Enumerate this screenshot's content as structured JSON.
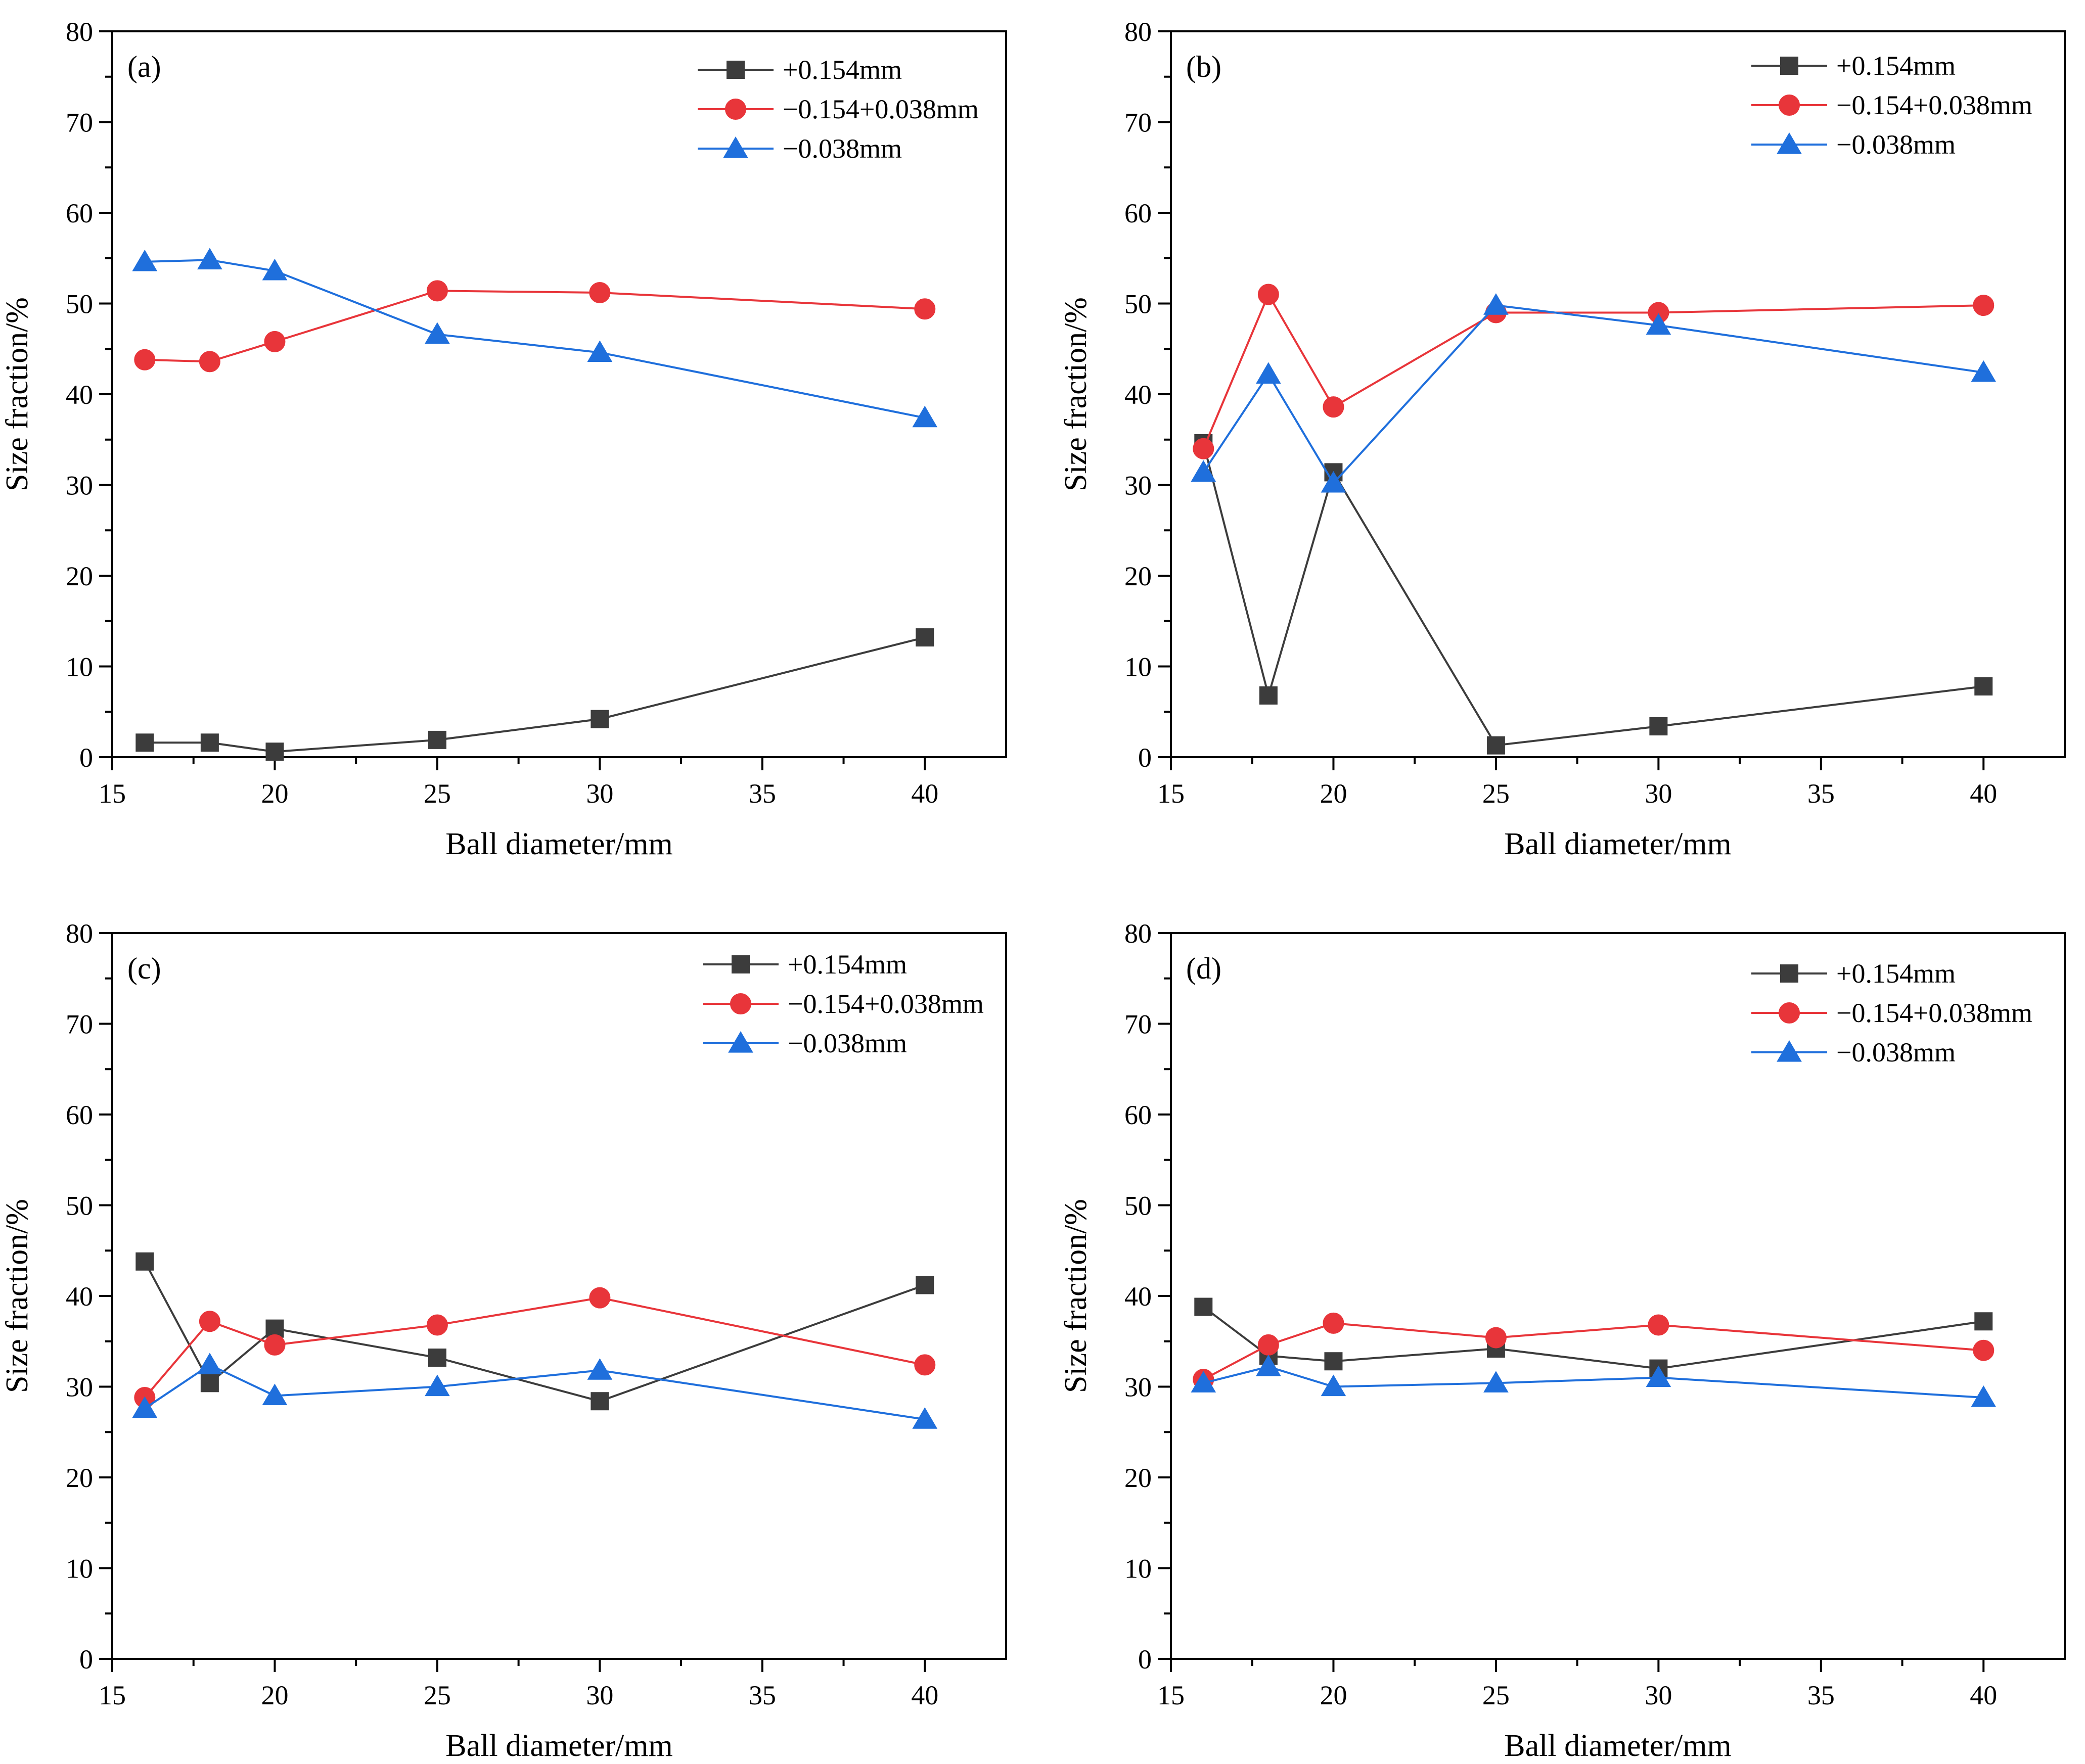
{
  "series_styles": [
    {
      "name": "+0.154mm",
      "color": "#3c3c3c",
      "marker": "square"
    },
    {
      "name": "−0.154+0.038mm",
      "color": "#e8353a",
      "marker": "circle"
    },
    {
      "name": "−0.038mm",
      "color": "#1f6fdc",
      "marker": "triangle"
    }
  ],
  "chart_data": [
    {
      "type": "line",
      "panel": "(a)",
      "xlabel": "Ball diameter/mm",
      "ylabel": "Size fraction/%",
      "xlim": [
        15,
        42.5
      ],
      "ylim": [
        0,
        80
      ],
      "xticks": [
        15,
        20,
        25,
        30,
        35,
        40
      ],
      "yticks": [
        0,
        10,
        20,
        30,
        40,
        50,
        60,
        70,
        80
      ],
      "x": [
        16,
        18,
        20,
        25,
        30,
        40
      ],
      "legend_position": "top-right",
      "series": [
        {
          "name": "+0.154mm",
          "values": [
            1.6,
            1.6,
            0.6,
            1.9,
            4.2,
            13.2
          ]
        },
        {
          "name": "−0.154+0.038mm",
          "values": [
            43.8,
            43.6,
            45.8,
            51.4,
            51.2,
            49.4
          ]
        },
        {
          "name": "−0.038mm",
          "values": [
            54.6,
            54.8,
            53.6,
            46.6,
            44.6,
            37.4
          ]
        }
      ]
    },
    {
      "type": "line",
      "panel": "(b)",
      "xlabel": "Ball diameter/mm",
      "ylabel": "Size fraction/%",
      "xlim": [
        15,
        42.5
      ],
      "ylim": [
        0,
        80
      ],
      "xticks": [
        15,
        20,
        25,
        30,
        35,
        40
      ],
      "yticks": [
        0,
        10,
        20,
        30,
        40,
        50,
        60,
        70,
        80
      ],
      "x": [
        16,
        18,
        20,
        25,
        30,
        40
      ],
      "legend_position": "top-right",
      "series": [
        {
          "name": "+0.154mm",
          "values": [
            34.6,
            6.8,
            31.4,
            1.3,
            3.4,
            7.8
          ]
        },
        {
          "name": "−0.154+0.038mm",
          "values": [
            34.0,
            51.0,
            38.6,
            49.0,
            49.0,
            49.8
          ]
        },
        {
          "name": "−0.038mm",
          "values": [
            31.4,
            42.2,
            30.2,
            49.8,
            47.6,
            42.4
          ]
        }
      ]
    },
    {
      "type": "line",
      "panel": "(c)",
      "xlabel": "Ball diameter/mm",
      "ylabel": "Size fraction/%",
      "xlim": [
        15,
        42.5
      ],
      "ylim": [
        0,
        80
      ],
      "xticks": [
        15,
        20,
        25,
        30,
        35,
        40
      ],
      "yticks": [
        0,
        10,
        20,
        30,
        40,
        50,
        60,
        70,
        80
      ],
      "x": [
        16,
        18,
        20,
        25,
        30,
        40
      ],
      "legend_position": "top-right",
      "series": [
        {
          "name": "+0.154mm",
          "values": [
            43.8,
            30.4,
            36.4,
            33.2,
            28.4,
            41.2
          ]
        },
        {
          "name": "−0.154+0.038mm",
          "values": [
            28.8,
            37.2,
            34.6,
            36.8,
            39.8,
            32.4
          ]
        },
        {
          "name": "−0.038mm",
          "values": [
            27.6,
            32.4,
            29.0,
            30.0,
            31.8,
            26.4
          ]
        }
      ]
    },
    {
      "type": "line",
      "panel": "(d)",
      "xlabel": "Ball diameter/mm",
      "ylabel": "Size fraction/%",
      "xlim": [
        15,
        42.5
      ],
      "ylim": [
        0,
        80
      ],
      "xticks": [
        15,
        20,
        25,
        30,
        35,
        40
      ],
      "yticks": [
        0,
        10,
        20,
        30,
        40,
        50,
        60,
        70,
        80
      ],
      "x": [
        16,
        18,
        20,
        25,
        30,
        40
      ],
      "legend_position": "top-right",
      "series": [
        {
          "name": "+0.154mm",
          "values": [
            38.8,
            33.4,
            32.8,
            34.2,
            32.0,
            37.2
          ]
        },
        {
          "name": "−0.154+0.038mm",
          "values": [
            30.8,
            34.6,
            37.0,
            35.4,
            36.8,
            34.0
          ]
        },
        {
          "name": "−0.038mm",
          "values": [
            30.4,
            32.2,
            30.0,
            30.4,
            31.0,
            28.8
          ]
        }
      ]
    }
  ]
}
